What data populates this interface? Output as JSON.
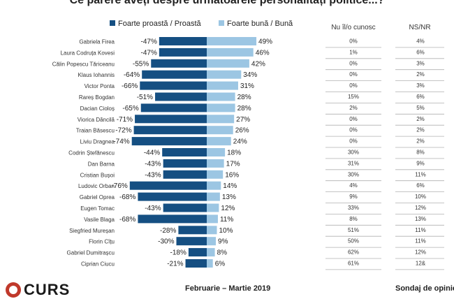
{
  "title": "Ce părere aveți despre următoarele personalități politice...?",
  "legend": {
    "negative": "Foarte proastă / Proastă",
    "positive": "Foarte bună / Bună"
  },
  "columns": {
    "unknown": "Nu îl/o cunosc",
    "nsnr": "NS/NR"
  },
  "colors": {
    "negative": "#154f82",
    "positive": "#9cc6e3",
    "gridline": "#b0b0b0"
  },
  "footer": {
    "logo": "CURS",
    "period": "Februarie – Martie 2019",
    "survey": "Sondaj de opinie"
  },
  "chart_data": {
    "type": "bar",
    "orientation": "horizontal-diverging",
    "categories": [
      "Gabriela Firea",
      "Laura Codruța Kovesi",
      "Călin Popescu Tăriceanu",
      "Klaus Iohannis",
      "Victor Ponta",
      "Rareș Bogdan",
      "Dacian Cioloș",
      "Viorica Dăncilă",
      "Traian Băsescu",
      "Liviu Dragnea",
      "Codrin Ștefănescu",
      "Dan Barna",
      "Cristian Bușoi",
      "Ludovic Orban",
      "Gabriel Oprea",
      "Eugen Tomac",
      "Vasile Blaga",
      "Siegfried Mureșan",
      "Florin Cîțu",
      "Gabriel Dumitrașcu",
      "Ciprian Ciucu"
    ],
    "series": [
      {
        "name": "Foarte proastă / Proastă",
        "values": [
          -47,
          -47,
          -55,
          -64,
          -66,
          -51,
          -65,
          -71,
          -72,
          -74,
          -44,
          -43,
          -43,
          -76,
          -68,
          -43,
          -68,
          -28,
          -30,
          -18,
          -21
        ]
      },
      {
        "name": "Foarte bună / Bună",
        "values": [
          49,
          46,
          42,
          34,
          31,
          28,
          28,
          27,
          26,
          24,
          18,
          17,
          16,
          14,
          13,
          12,
          11,
          10,
          9,
          8,
          6
        ]
      }
    ],
    "negative_labels": [
      "-47%",
      "-47%",
      "-55%",
      "-64%",
      "-66%",
      "-51%",
      "-65%",
      "-71%",
      "-72%",
      "-74%",
      "-44%",
      "-43%",
      "-43%",
      "-76%",
      "-68%",
      "-43%",
      "-68%",
      "-28%",
      "-30%",
      "-18%",
      "-21%"
    ],
    "positive_labels": [
      "49%",
      "46%",
      "42%",
      "34%",
      "31%",
      "28%",
      "28%",
      "27%",
      "26%",
      "24%",
      "18%",
      "17%",
      "16%",
      "14%",
      "13%",
      "12%",
      "11%",
      "10%",
      "9%",
      "8%",
      "6%"
    ],
    "unknown_labels": [
      "0%",
      "1%",
      "0%",
      "0%",
      "0%",
      "15%",
      "2%",
      "0%",
      "0%",
      "0%",
      "30%",
      "31%",
      "30%",
      "4%",
      "9%",
      "33%",
      "8%",
      "51%",
      "50%",
      "62%",
      "61%"
    ],
    "nsnr_labels": [
      "4%",
      "6%",
      "3%",
      "2%",
      "3%",
      "6%",
      "5%",
      "2%",
      "2%",
      "2%",
      "8%",
      "9%",
      "11%",
      "6%",
      "10%",
      "12%",
      "13%",
      "11%",
      "11%",
      "12%",
      "12&"
    ]
  }
}
